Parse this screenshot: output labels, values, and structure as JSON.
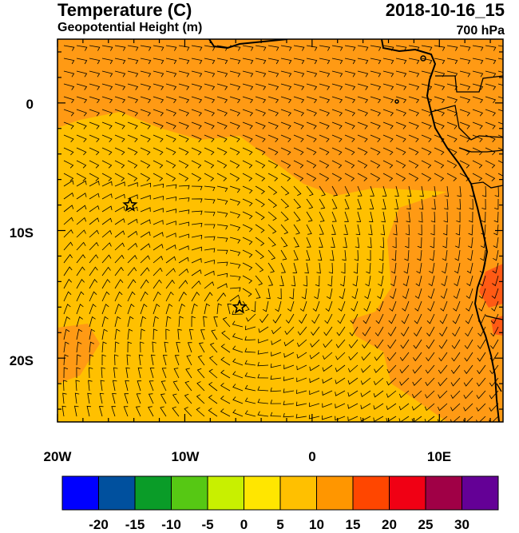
{
  "header": {
    "title": "Temperature (C)",
    "subtitle": "Geopotential Height (m)",
    "datetime": "2018-10-16_15",
    "level": "700 hPa"
  },
  "map": {
    "lon_range": [
      -20,
      15
    ],
    "lat_range": [
      -25,
      5
    ],
    "x_tick_labels": [
      "20W",
      "10W",
      "0",
      "10E"
    ],
    "y_tick_labels": [
      "0",
      "10S",
      "20S"
    ],
    "markers": [
      {
        "type": "star",
        "lon": -14.3,
        "lat": -8.0
      },
      {
        "type": "star",
        "lon": -5.7,
        "lat": -16.0
      }
    ]
  },
  "colorbar": {
    "labels": [
      "-20",
      "-15",
      "-10",
      "-5",
      "0",
      "5",
      "10",
      "15",
      "20",
      "25",
      "30"
    ],
    "colors": [
      "#0000ff",
      "#00509e",
      "#0a9c28",
      "#56c814",
      "#c8f000",
      "#ffe600",
      "#ffc000",
      "#ff9600",
      "#ff4600",
      "#f00014",
      "#a00046",
      "#640096"
    ]
  },
  "field_colors": {
    "ocean_main": "#ffc000",
    "warm": "#ff9a14",
    "hot": "#ff5a14"
  }
}
